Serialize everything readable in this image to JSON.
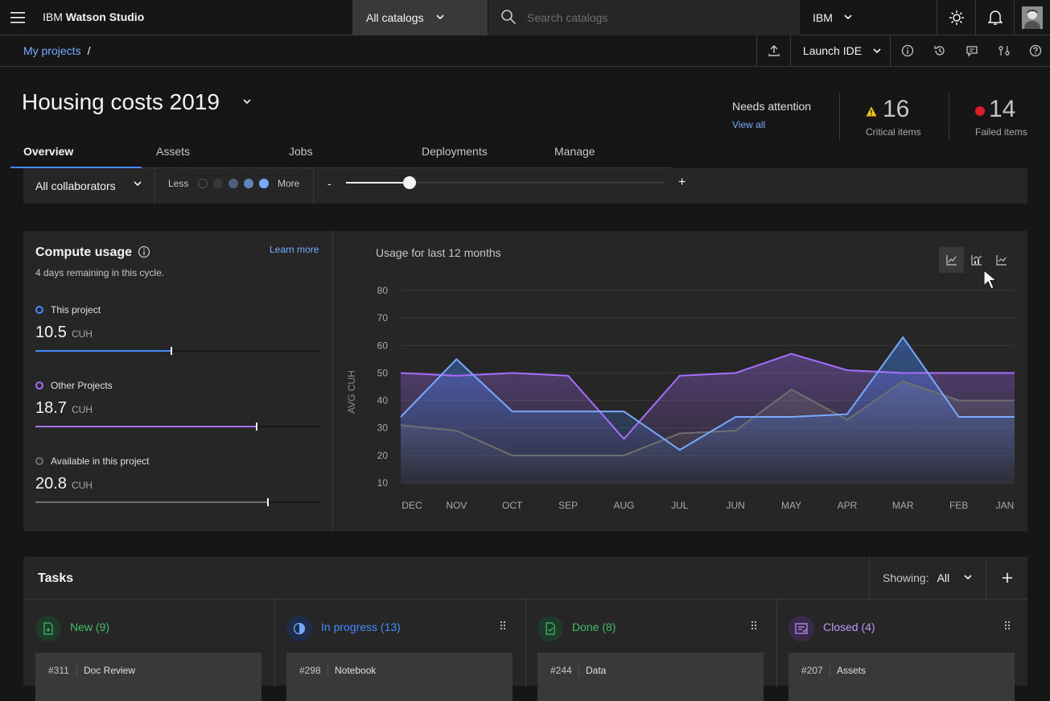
{
  "topnav": {
    "brand_prefix": "IBM",
    "brand_product": "Watson Studio",
    "catalog_label": "All catalogs",
    "search_placeholder": "Search catalogs",
    "account_label": "IBM"
  },
  "subbar": {
    "breadcrumb_link": "My projects",
    "breadcrumb_sep": "/",
    "launch_label": "Launch IDE"
  },
  "header": {
    "title": "Housing costs 2019",
    "attention_label": "Needs attention",
    "view_all": "View all",
    "critical_count": "16",
    "critical_label": "Critical items",
    "failed_count": "14",
    "failed_label": "Failed items"
  },
  "tabs": [
    "Overview",
    "Assets",
    "Jobs",
    "Deployments",
    "Manage"
  ],
  "toolbar": {
    "collaborators": "All collaborators",
    "less": "Less",
    "more": "More",
    "minus": "-",
    "plus": "+",
    "zoom_level": 0.2
  },
  "compute": {
    "title": "Compute usage",
    "learn_more": "Learn more",
    "remaining": "4 days remaining in this cycle.",
    "items": [
      {
        "label": "This project",
        "value": "10.5",
        "unit": "CUH",
        "fraction": 0.48,
        "color": "#4589ff"
      },
      {
        "label": "Other Projects",
        "value": "18.7",
        "unit": "CUH",
        "fraction": 0.78,
        "color": "#a56eff"
      },
      {
        "label": "Available in this project",
        "value": "20.8",
        "unit": "CUH",
        "fraction": 0.82,
        "color": "#6f6f6f"
      }
    ]
  },
  "chart_data": {
    "type": "area",
    "title": "Usage for last 12 months",
    "xlabel": "",
    "ylabel": "AVG CUH",
    "categories": [
      "DEC",
      "NOV",
      "OCT",
      "SEP",
      "AUG",
      "JUL",
      "JUN",
      "MAY",
      "APR",
      "MAR",
      "FEB",
      "JAN"
    ],
    "y_ticks": [
      10,
      20,
      30,
      40,
      50,
      60,
      70,
      80
    ],
    "ylim": [
      10,
      80
    ],
    "grid": true,
    "series": [
      {
        "color": "#a56eff",
        "values": [
          50,
          49,
          50,
          49,
          26,
          49,
          50,
          57,
          51,
          50,
          50,
          50
        ]
      },
      {
        "color": "#6f6f6f",
        "values": [
          31,
          29,
          20,
          20,
          20,
          28,
          29,
          44,
          33,
          47,
          40,
          40
        ]
      },
      {
        "color": "#78a9ff",
        "values": [
          34,
          55,
          36,
          36,
          36,
          22,
          34,
          34,
          35,
          63,
          34,
          34
        ]
      }
    ]
  },
  "tasks": {
    "title": "Tasks",
    "showing_label": "Showing:",
    "showing_value": "All",
    "columns": [
      {
        "label": "New (9)",
        "color": "#42be65",
        "card_num": "#311",
        "card_name": "Doc Review"
      },
      {
        "label": "In progress (13)",
        "color": "#4589ff",
        "card_num": "#298",
        "card_name": "Notebook"
      },
      {
        "label": "Done (8)",
        "color": "#42be65",
        "card_num": "#244",
        "card_name": "Data"
      },
      {
        "label": "Closed (4)",
        "color": "#be95ff",
        "card_num": "#207",
        "card_name": "Assets"
      }
    ]
  }
}
